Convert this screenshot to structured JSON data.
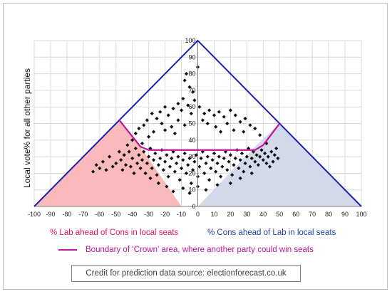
{
  "chart_data": {
    "type": "scatter",
    "title": "",
    "ylabel": "Local vote%  for all other parties",
    "xlabel": "",
    "xlim": [
      -100,
      100
    ],
    "ylim": [
      0,
      100
    ],
    "x_ticks": [
      -100,
      -90,
      -80,
      -70,
      -60,
      -50,
      -40,
      -30,
      -20,
      -10,
      0,
      10,
      20,
      30,
      40,
      50,
      60,
      70,
      80,
      90,
      100
    ],
    "y_ticks": [
      0,
      10,
      20,
      30,
      40,
      50,
      60,
      70,
      80,
      90,
      100
    ],
    "grid": true,
    "colors": {
      "lab_region": "#f7b3b3",
      "cons_region": "#cfd5e8",
      "triangle": "#1f1fb4",
      "boundary": "#c0149a",
      "points": "#111111"
    },
    "triangle": [
      [
        -100,
        0
      ],
      [
        0,
        100
      ],
      [
        100,
        0
      ]
    ],
    "lab_region_polygon": [
      [
        -100,
        0
      ],
      [
        -48,
        52
      ],
      [
        -35,
        36
      ],
      [
        -10,
        0
      ]
    ],
    "cons_region_polygon": [
      [
        100,
        0
      ],
      [
        50,
        50
      ],
      [
        35,
        36
      ],
      [
        0,
        0
      ]
    ],
    "crown_boundary": [
      [
        -48,
        52
      ],
      [
        -35,
        36
      ],
      [
        -30,
        34
      ],
      [
        35,
        34
      ],
      [
        40,
        37
      ],
      [
        50,
        50
      ]
    ],
    "points": [
      [
        0,
        84
      ],
      [
        -7,
        80
      ],
      [
        -8,
        76
      ],
      [
        -5,
        72
      ],
      [
        -3,
        69
      ],
      [
        -9,
        65
      ],
      [
        -6,
        61
      ],
      [
        -2,
        64
      ],
      [
        -10,
        58
      ],
      [
        -4,
        56
      ],
      [
        -12,
        62
      ],
      [
        -15,
        59
      ],
      [
        -18,
        55
      ],
      [
        -20,
        60
      ],
      [
        -23,
        57
      ],
      [
        -25,
        53
      ],
      [
        -28,
        56
      ],
      [
        -31,
        52
      ],
      [
        -33,
        49
      ],
      [
        -36,
        47
      ],
      [
        -22,
        50
      ],
      [
        -16,
        48
      ],
      [
        -12,
        52
      ],
      [
        -8,
        49
      ],
      [
        -27,
        45
      ],
      [
        -38,
        44
      ],
      [
        -30,
        42
      ],
      [
        -14,
        44
      ],
      [
        -20,
        46
      ],
      [
        -40,
        40
      ],
      [
        1,
        60
      ],
      [
        4,
        56
      ],
      [
        7,
        58
      ],
      [
        10,
        55
      ],
      [
        13,
        57
      ],
      [
        16,
        54
      ],
      [
        20,
        58
      ],
      [
        23,
        55
      ],
      [
        26,
        51
      ],
      [
        29,
        53
      ],
      [
        32,
        49
      ],
      [
        18,
        50
      ],
      [
        11,
        48
      ],
      [
        6,
        50
      ],
      [
        22,
        46
      ],
      [
        28,
        45
      ],
      [
        35,
        47
      ],
      [
        14,
        45
      ],
      [
        38,
        43
      ],
      [
        3,
        52
      ],
      [
        -52,
        24
      ],
      [
        -56,
        22
      ],
      [
        -50,
        26
      ],
      [
        -47,
        28
      ],
      [
        -45,
        31
      ],
      [
        -44,
        25
      ],
      [
        -42,
        33
      ],
      [
        -40,
        29
      ],
      [
        -38,
        35
      ],
      [
        -37,
        26
      ],
      [
        -36,
        31
      ],
      [
        -35,
        23
      ],
      [
        -34,
        28
      ],
      [
        -33,
        33
      ],
      [
        -32,
        20
      ],
      [
        -31,
        26
      ],
      [
        -30,
        30
      ],
      [
        -29,
        35
      ],
      [
        -28,
        23
      ],
      [
        -27,
        28
      ],
      [
        -26,
        32
      ],
      [
        -25,
        19
      ],
      [
        -24,
        25
      ],
      [
        -23,
        29
      ],
      [
        -22,
        34
      ],
      [
        -21,
        22
      ],
      [
        -20,
        27
      ],
      [
        -19,
        31
      ],
      [
        -18,
        18
      ],
      [
        -17,
        24
      ],
      [
        -16,
        29
      ],
      [
        -15,
        33
      ],
      [
        -14,
        21
      ],
      [
        -13,
        26
      ],
      [
        -12,
        30
      ],
      [
        -11,
        16
      ],
      [
        -10,
        23
      ],
      [
        -9,
        28
      ],
      [
        -8,
        32
      ],
      [
        -7,
        20
      ],
      [
        -6,
        25
      ],
      [
        -5,
        29
      ],
      [
        -4,
        14
      ],
      [
        -3,
        22
      ],
      [
        -2,
        27
      ],
      [
        -1,
        31
      ],
      [
        0,
        18
      ],
      [
        1,
        24
      ],
      [
        2,
        29
      ],
      [
        3,
        33
      ],
      [
        4,
        20
      ],
      [
        5,
        26
      ],
      [
        6,
        30
      ],
      [
        7,
        16
      ],
      [
        8,
        23
      ],
      [
        9,
        28
      ],
      [
        10,
        32
      ],
      [
        11,
        21
      ],
      [
        12,
        26
      ],
      [
        13,
        30
      ],
      [
        14,
        18
      ],
      [
        15,
        24
      ],
      [
        16,
        29
      ],
      [
        17,
        33
      ],
      [
        18,
        22
      ],
      [
        19,
        27
      ],
      [
        20,
        31
      ],
      [
        21,
        19
      ],
      [
        22,
        25
      ],
      [
        23,
        29
      ],
      [
        24,
        34
      ],
      [
        25,
        23
      ],
      [
        26,
        28
      ],
      [
        27,
        32
      ],
      [
        28,
        21
      ],
      [
        29,
        26
      ],
      [
        30,
        30
      ],
      [
        31,
        35
      ],
      [
        32,
        24
      ],
      [
        33,
        29
      ],
      [
        34,
        33
      ],
      [
        35,
        27
      ],
      [
        36,
        31
      ],
      [
        37,
        25
      ],
      [
        38,
        30
      ],
      [
        39,
        34
      ],
      [
        40,
        28
      ],
      [
        41,
        32
      ],
      [
        42,
        26
      ],
      [
        43,
        30
      ],
      [
        45,
        33
      ],
      [
        47,
        31
      ],
      [
        49,
        29
      ],
      [
        -48,
        33
      ],
      [
        -60,
        23
      ],
      [
        -64,
        21
      ],
      [
        -58,
        27
      ],
      [
        -46,
        22
      ],
      [
        -41,
        24
      ],
      [
        -39,
        20
      ],
      [
        -29,
        17
      ],
      [
        -24,
        14
      ],
      [
        -19,
        12
      ],
      [
        -15,
        9
      ],
      [
        -9,
        11
      ],
      [
        -5,
        8
      ],
      [
        0,
        12
      ],
      [
        5,
        10
      ],
      [
        12,
        13
      ],
      [
        20,
        14
      ],
      [
        26,
        17
      ],
      [
        33,
        20
      ],
      [
        44,
        24
      ],
      [
        46,
        27
      ],
      [
        -54,
        30
      ],
      [
        -43,
        37
      ],
      [
        -34,
        38
      ],
      [
        48,
        35
      ],
      [
        42,
        38
      ],
      [
        -62,
        25
      ]
    ]
  },
  "captions": {
    "lab": "% Lab ahead of Cons in local seats",
    "cons": "% Cons ahead of Lab in local seats",
    "boundary_legend": "Boundary of ‘Crown’ area, where another party could win seats",
    "credit": "Credit for prediction data source:  electionforecast.co.uk"
  }
}
